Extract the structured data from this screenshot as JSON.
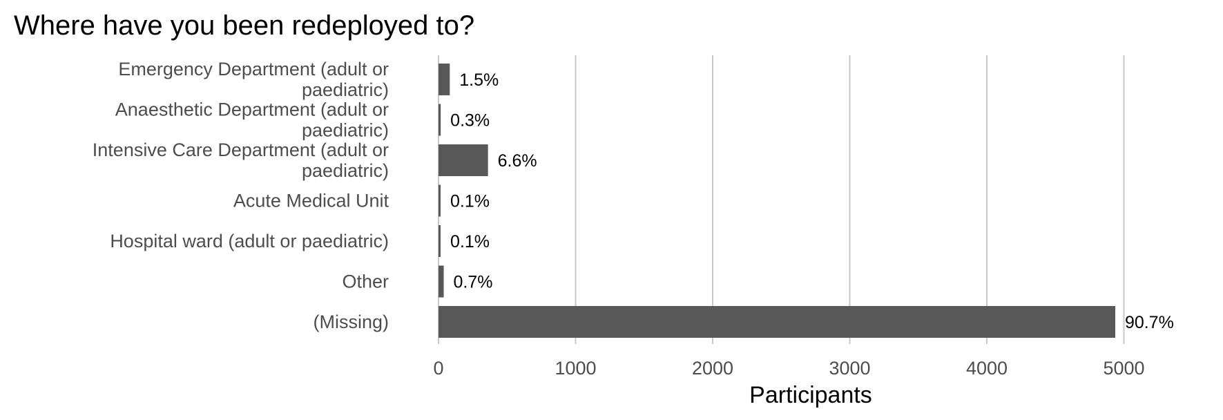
{
  "chart_data": {
    "type": "bar",
    "orientation": "horizontal",
    "title": "Where have you been redeployed to?",
    "xlabel": "Participants",
    "ylabel": "",
    "categories": [
      [
        "Emergency Department (adult or",
        "paediatric)"
      ],
      [
        "Anaesthetic Department (adult or",
        "paediatric)"
      ],
      [
        "Intensive Care Department (adult or",
        "paediatric)"
      ],
      [
        "Acute Medical Unit"
      ],
      [
        "Hospital ward (adult or paediatric)"
      ],
      [
        "Other"
      ],
      [
        "(Missing)"
      ]
    ],
    "values": [
      82,
      16,
      361,
      5,
      5,
      38,
      4937
    ],
    "data_labels": [
      "1.5%",
      "0.3%",
      "6.6%",
      "0.1%",
      "0.1%",
      "0.7%",
      "90.7%"
    ],
    "xlim": [
      0,
      5000
    ],
    "xticks": [
      0,
      1000,
      2000,
      3000,
      4000,
      5000
    ],
    "xtick_labels": [
      "0",
      "1000",
      "2000",
      "3000",
      "4000",
      "5000"
    ],
    "grid": true,
    "grid_axis": "x",
    "bar_color": "#595959",
    "legend": "none"
  }
}
